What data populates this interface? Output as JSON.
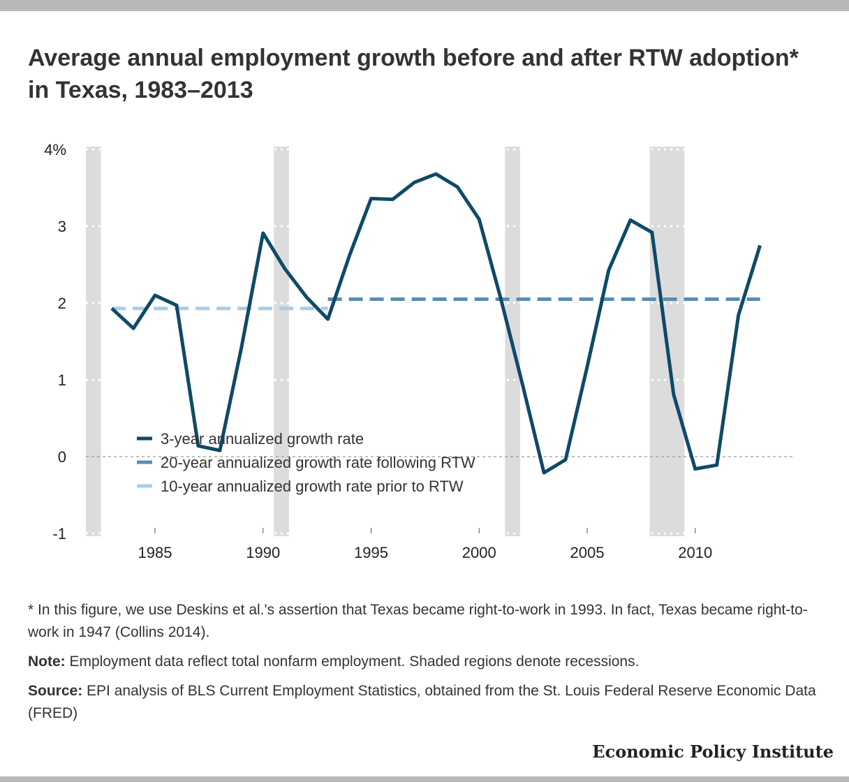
{
  "title": "Average annual employment growth before and after RTW adoption* in Texas, 1983–2013",
  "chart_data": {
    "type": "line",
    "title": "Average annual employment growth before and after RTW adoption* in Texas, 1983–2013",
    "xlabel": "",
    "ylabel": "",
    "xlim": [
      1981.8,
      2014.5
    ],
    "ylim": [
      -1,
      4
    ],
    "x_ticks": [
      1985,
      1990,
      1995,
      2000,
      2005,
      2010
    ],
    "y_ticks": [
      {
        "value": 4,
        "label": "4%"
      },
      {
        "value": 3,
        "label": "3"
      },
      {
        "value": 2,
        "label": "2"
      },
      {
        "value": 1,
        "label": "1"
      },
      {
        "value": 0,
        "label": "0"
      },
      {
        "value": -1,
        "label": "-1"
      }
    ],
    "recessions": [
      [
        1981.8,
        1982.5
      ],
      [
        1990.5,
        1991.2
      ],
      [
        2001.2,
        2001.9
      ],
      [
        2007.9,
        2009.5
      ]
    ],
    "series": [
      {
        "name": "3-year annualized growth rate",
        "style": "solid",
        "color": "#0e4a68",
        "x": [
          1983,
          1984,
          1985,
          1986,
          1987,
          1988,
          1989,
          1990,
          1991,
          1992,
          1993,
          1994,
          1995,
          1996,
          1997,
          1998,
          1999,
          2000,
          2001,
          2002,
          2003,
          2004,
          2005,
          2006,
          2007,
          2008,
          2009,
          2010,
          2011,
          2012,
          2013
        ],
        "y": [
          1.93,
          1.67,
          2.1,
          1.97,
          0.14,
          0.08,
          1.42,
          2.91,
          2.45,
          2.08,
          1.79,
          2.62,
          3.36,
          3.35,
          3.57,
          3.68,
          3.51,
          3.09,
          2.06,
          0.95,
          -0.21,
          -0.04,
          1.17,
          2.43,
          3.08,
          2.92,
          0.81,
          -0.16,
          -0.11,
          1.84,
          2.75
        ]
      },
      {
        "name": "20-year annualized growth rate following RTW",
        "style": "dashed",
        "color": "#5b8db3",
        "x": [
          1993,
          2013
        ],
        "y": [
          2.05,
          2.05
        ]
      },
      {
        "name": "10-year annualized growth rate prior to RTW",
        "style": "dashed",
        "color": "#a8cdea",
        "x": [
          1983,
          1993
        ],
        "y": [
          1.93,
          1.93
        ]
      }
    ],
    "grid": "dotted white lines across recession bands",
    "legend_position": "lower-left"
  },
  "notes": {
    "footnote": "* In this figure, we use Deskins et al.'s assertion that Texas became right-to-work in 1993. In fact, Texas became right-to-work in 1947 (Collins 2014).",
    "note_label": "Note:",
    "note_text": " Employment data reflect total nonfarm employment. Shaded regions denote recessions.",
    "source_label": "Source:",
    "source_text": " EPI analysis of BLS Current Employment Statistics, obtained from the St. Louis Federal Reserve Economic Data (FRED)"
  },
  "brand": "Economic Policy Institute",
  "colors": {
    "recession": "#dcdcdc",
    "frame_bar": "#b8b8b8",
    "zero_line": "#999999"
  }
}
